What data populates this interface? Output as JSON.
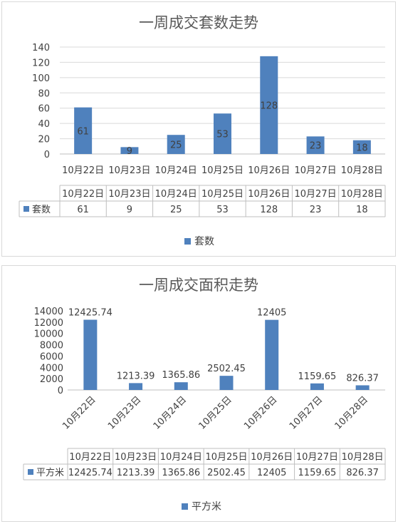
{
  "chart_data": [
    {
      "type": "bar",
      "title": "一周成交套数走势",
      "categories": [
        "10月22日",
        "10月23日",
        "10月24日",
        "10月25日",
        "10月26日",
        "10月27日",
        "10月28日"
      ],
      "series": [
        {
          "name": "套数",
          "values": [
            61,
            9,
            25,
            53,
            128,
            23,
            18
          ]
        }
      ],
      "value_labels": [
        "61",
        "9",
        "25",
        "53",
        "128",
        "23",
        "18"
      ],
      "yticks": [
        "0",
        "20",
        "40",
        "60",
        "80",
        "100",
        "120",
        "140"
      ],
      "ylim": [
        0,
        140
      ],
      "grid": true,
      "data_table": true,
      "legend": "bottom",
      "color": "#4f81bd"
    },
    {
      "type": "bar",
      "title": "一周成交面积走势",
      "categories": [
        "10月22日",
        "10月23日",
        "10月24日",
        "10月25日",
        "10月26日",
        "10月27日",
        "10月28日"
      ],
      "series": [
        {
          "name": "平方米",
          "values": [
            12425.74,
            1213.39,
            1365.86,
            2502.45,
            12405,
            1159.65,
            826.37
          ]
        }
      ],
      "value_labels": [
        "12425.74",
        "1213.39",
        "1365.86",
        "2502.45",
        "12405",
        "1159.65",
        "826.37"
      ],
      "yticks": [
        "0",
        "2000",
        "4000",
        "6000",
        "8000",
        "10000",
        "12000",
        "14000"
      ],
      "ylim": [
        0,
        14000
      ],
      "grid": false,
      "data_table": true,
      "legend": "bottom",
      "color": "#4f81bd"
    }
  ]
}
